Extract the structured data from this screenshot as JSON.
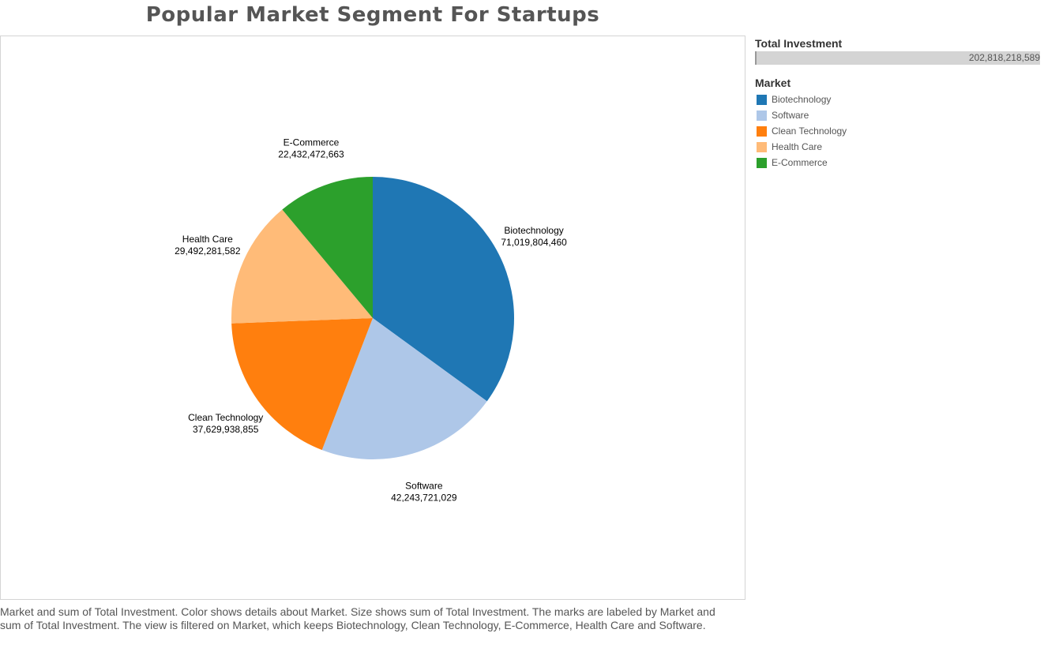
{
  "title": "Popular Market Segment For Startups",
  "filter": {
    "title": "Total Investment",
    "value": "202,818,218,589"
  },
  "legend": {
    "title": "Market",
    "items": [
      {
        "label": "Biotechnology",
        "color": "#1f77b4"
      },
      {
        "label": "Software",
        "color": "#aec7e8"
      },
      {
        "label": "Clean Technology",
        "color": "#ff7f0e"
      },
      {
        "label": "Health Care",
        "color": "#ffbb78"
      },
      {
        "label": "E-Commerce",
        "color": "#2ca02c"
      }
    ]
  },
  "caption": "Market and sum of Total Investment.  Color shows details about Market.  Size shows sum of Total Investment.  The marks are labeled by Market and sum of Total Investment. The view is filtered on Market, which keeps Biotechnology, Clean Technology, E-Commerce, Health Care and Software.",
  "chart_data": {
    "type": "pie",
    "title": "Popular Market Segment For Startups",
    "start": "top",
    "direction": "clockwise",
    "slices": [
      {
        "label": "Biotechnology",
        "value": 71019804460,
        "value_text": "71,019,804,460",
        "color": "#1f77b4"
      },
      {
        "label": "Software",
        "value": 42243721029,
        "value_text": "42,243,721,029",
        "color": "#aec7e8"
      },
      {
        "label": "Clean Technology",
        "value": 37629938855,
        "value_text": "37,629,938,855",
        "color": "#ff7f0e"
      },
      {
        "label": "Health Care",
        "value": 29492281582,
        "value_text": "29,492,281,582",
        "color": "#ffbb78"
      },
      {
        "label": "E-Commerce",
        "value": 22432472663,
        "value_text": "22,432,472,663",
        "color": "#2ca02c"
      }
    ]
  }
}
